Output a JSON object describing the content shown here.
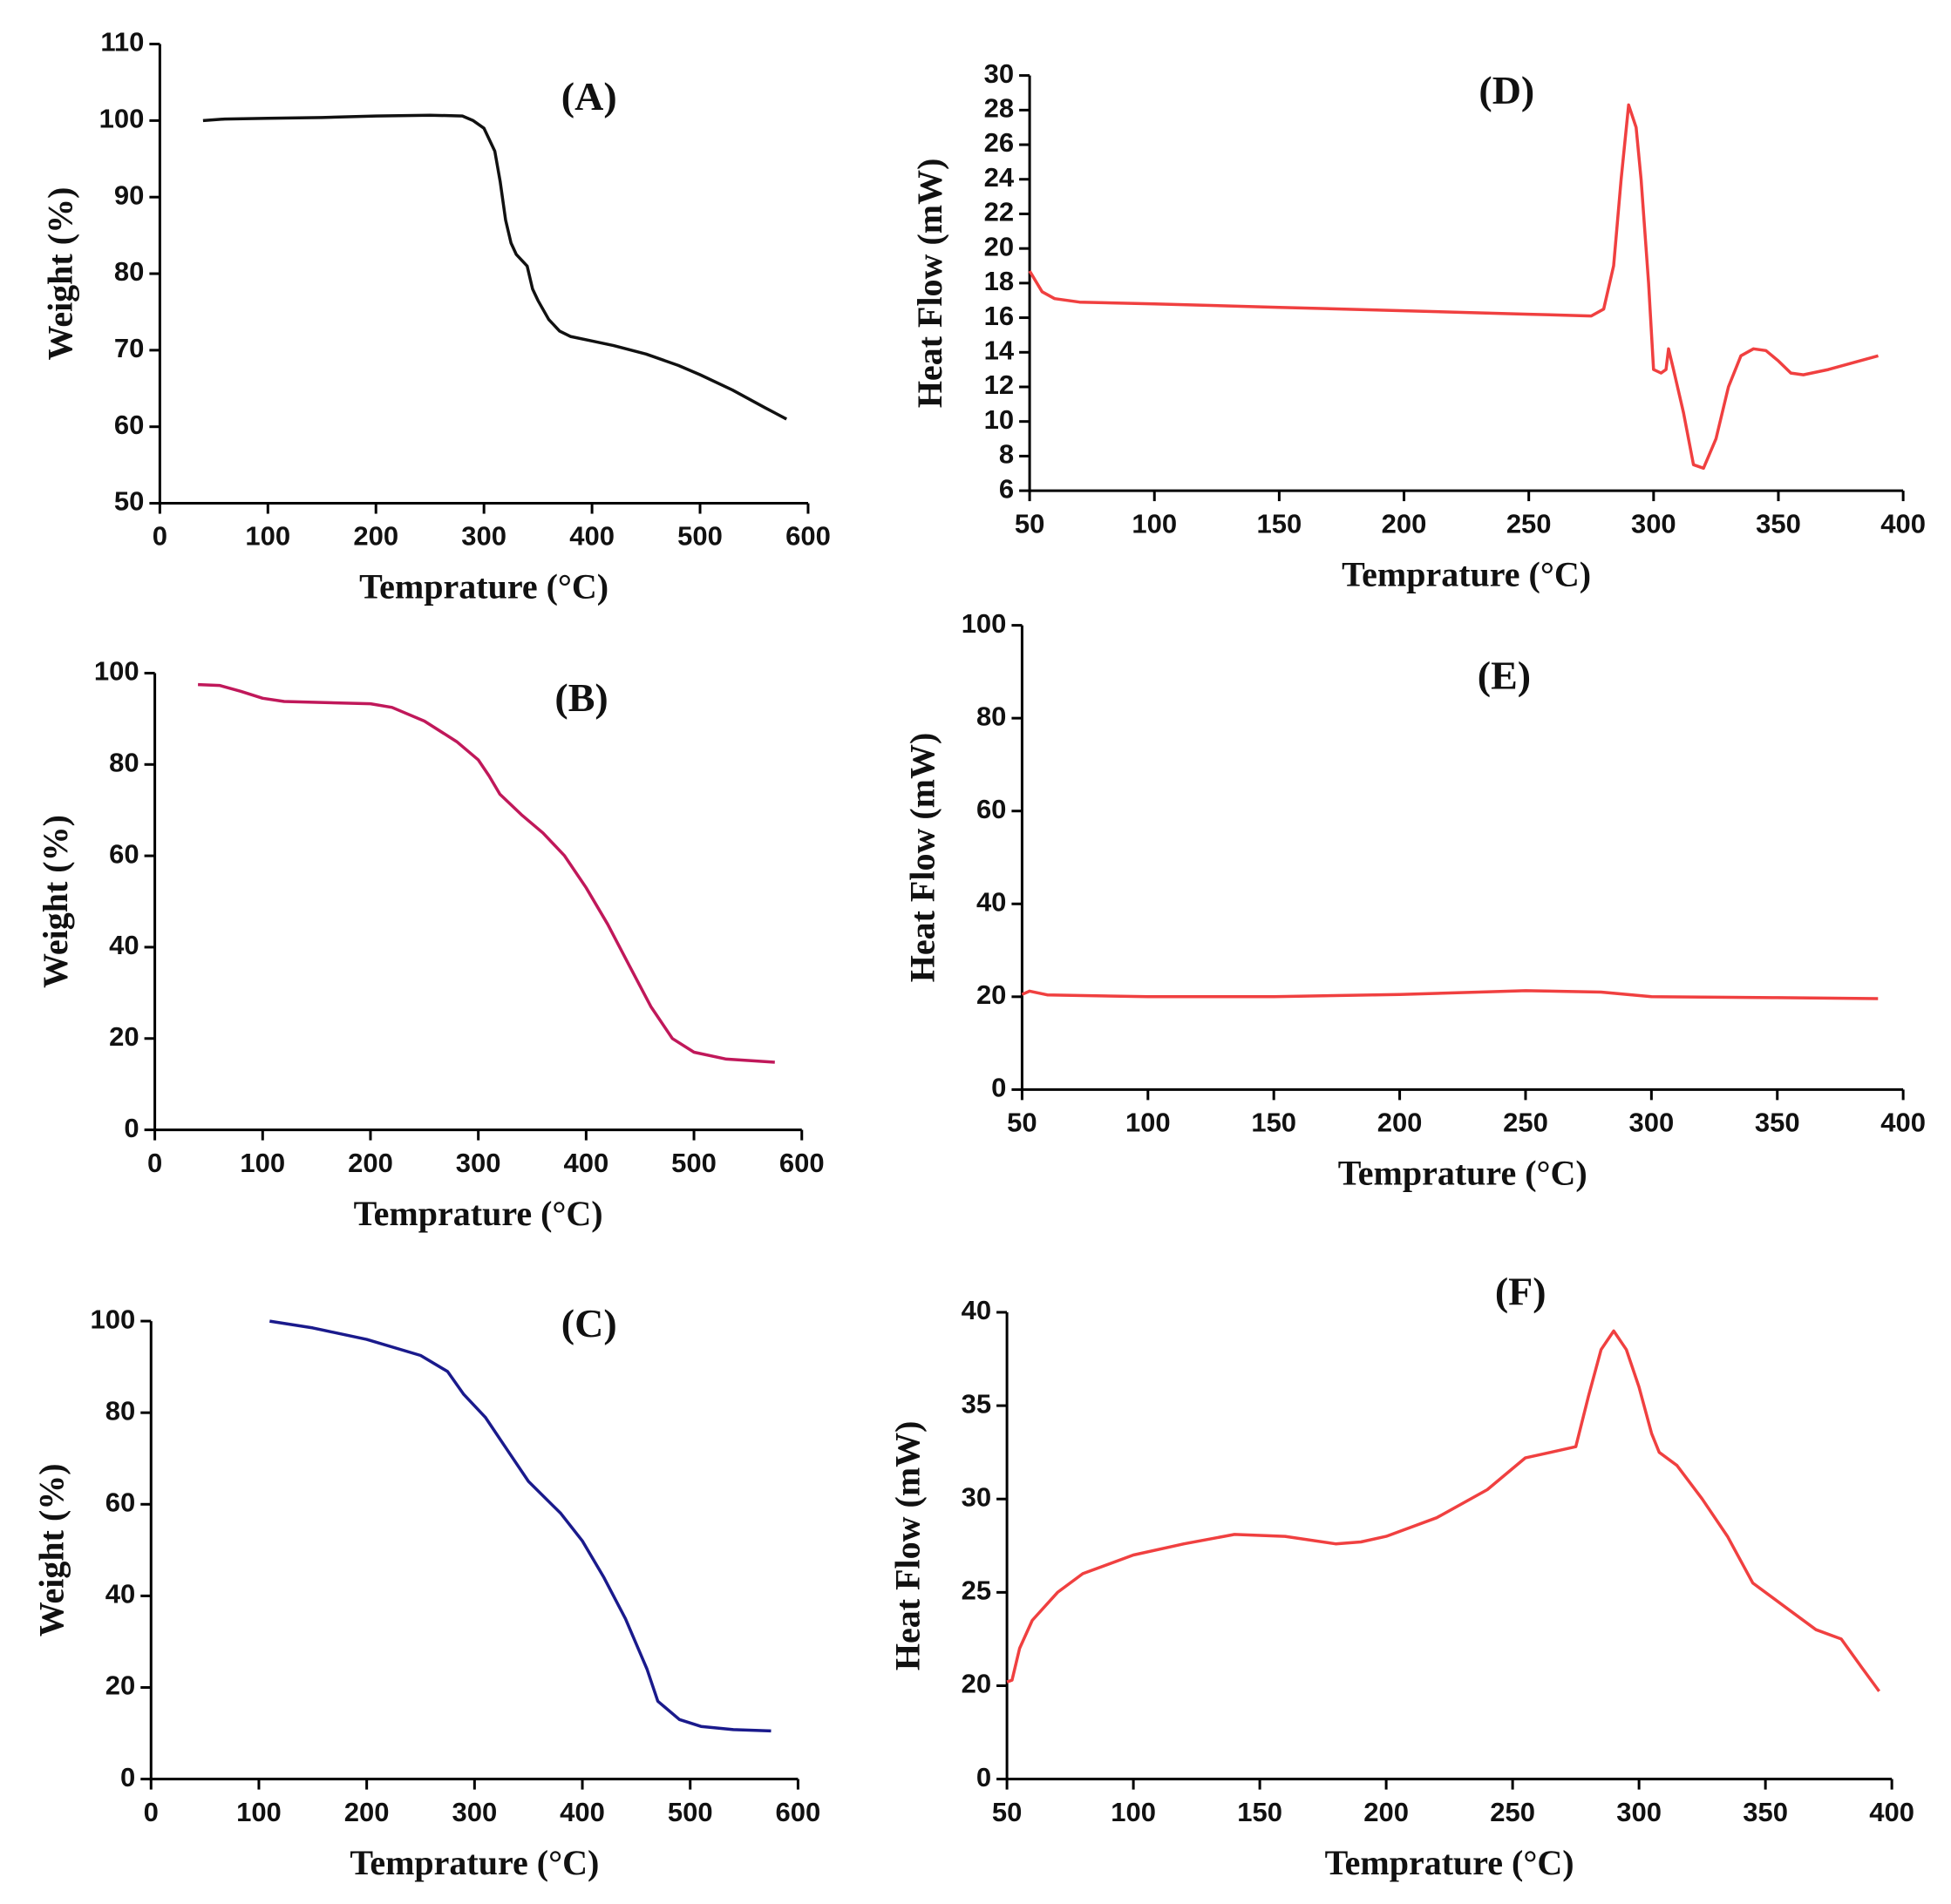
{
  "chart_data": [
    {
      "type": "line",
      "title": "(A)",
      "xlabel": "Temprature (°C)",
      "ylabel": "Weight (%)",
      "color": "#111111",
      "xlim": [
        0,
        600
      ],
      "xticks": [
        0,
        100,
        200,
        300,
        400,
        500,
        600
      ],
      "ylim": [
        50,
        110
      ],
      "yticks": [
        50,
        60,
        70,
        80,
        90,
        100,
        110
      ],
      "x": [
        40,
        60,
        100,
        150,
        200,
        250,
        280,
        290,
        300,
        310,
        315,
        320,
        325,
        330,
        340,
        345,
        350,
        360,
        370,
        380,
        400,
        420,
        450,
        480,
        500,
        530,
        560,
        580
      ],
      "values": [
        100,
        100.2,
        100.3,
        100.4,
        100.6,
        100.7,
        100.6,
        100,
        99,
        96,
        92,
        87,
        84,
        82.5,
        81,
        78,
        76.5,
        74,
        72.5,
        71.8,
        71.2,
        70.6,
        69.5,
        68,
        66.8,
        64.8,
        62.5,
        61
      ]
    },
    {
      "type": "line",
      "title": "(B)",
      "xlabel": "Temprature (°C)",
      "ylabel": "Weight (%)",
      "color": "#c0185a",
      "xlim": [
        0,
        600
      ],
      "xticks": [
        0,
        100,
        200,
        300,
        400,
        500,
        600
      ],
      "ylim": [
        0,
        100
      ],
      "yticks": [
        0,
        20,
        40,
        60,
        80,
        100
      ],
      "x": [
        40,
        60,
        80,
        100,
        120,
        150,
        200,
        220,
        250,
        280,
        300,
        310,
        320,
        340,
        360,
        380,
        400,
        420,
        440,
        460,
        480,
        500,
        530,
        575
      ],
      "values": [
        97.5,
        97.3,
        96,
        94.5,
        93.8,
        93.6,
        93.3,
        92.5,
        89.5,
        85,
        81,
        77.5,
        73.5,
        69,
        65,
        60,
        53,
        45,
        36,
        27,
        20,
        17,
        15.5,
        14.8
      ]
    },
    {
      "type": "line",
      "title": "(C)",
      "xlabel": "Temprature (°C)",
      "ylabel": "Weight (%)",
      "color": "#1a1a8c",
      "xlim": [
        0,
        600
      ],
      "xticks": [
        0,
        100,
        200,
        300,
        400,
        500,
        600
      ],
      "ylim": [
        0,
        100
      ],
      "yticks": [
        0,
        20,
        40,
        60,
        80,
        100
      ],
      "x": [
        110,
        150,
        200,
        250,
        275,
        290,
        310,
        330,
        350,
        380,
        400,
        420,
        440,
        460,
        470,
        490,
        510,
        540,
        575
      ],
      "values": [
        100,
        98.5,
        96,
        92.5,
        89,
        84,
        79,
        72,
        65,
        58,
        52,
        44,
        35,
        24,
        17,
        13,
        11.5,
        10.8,
        10.5
      ]
    },
    {
      "type": "line",
      "title": "(D)",
      "xlabel": "Temprature (°C)",
      "ylabel": "Heat Flow (mW)",
      "color": "#f04040",
      "xlim": [
        50,
        400
      ],
      "xticks": [
        50,
        100,
        150,
        200,
        250,
        300,
        350,
        400
      ],
      "ylim": [
        6,
        30
      ],
      "yticks": [
        6,
        8,
        10,
        12,
        14,
        16,
        18,
        20,
        22,
        24,
        26,
        28,
        30
      ],
      "x": [
        50,
        55,
        60,
        70,
        100,
        150,
        200,
        250,
        275,
        280,
        284,
        287,
        290,
        293,
        295,
        298,
        300,
        303,
        305,
        306,
        308,
        312,
        316,
        320,
        325,
        330,
        335,
        340,
        345,
        350,
        355,
        360,
        370,
        390
      ],
      "values": [
        18.7,
        17.5,
        17.1,
        16.9,
        16.8,
        16.6,
        16.4,
        16.2,
        16.1,
        16.5,
        19,
        24,
        28.3,
        27,
        24,
        18,
        13,
        12.8,
        13,
        14.2,
        13,
        10.5,
        7.5,
        7.3,
        9,
        12,
        13.8,
        14.2,
        14.1,
        13.5,
        12.8,
        12.7,
        13,
        13.8
      ]
    },
    {
      "type": "line",
      "title": "(E)",
      "xlabel": "Temprature (°C)",
      "ylabel": "Heat Flow (mW)",
      "color": "#f04040",
      "xlim": [
        50,
        400
      ],
      "xticks": [
        50,
        100,
        150,
        200,
        250,
        300,
        350,
        400
      ],
      "ylim": [
        0,
        100
      ],
      "yticks": [
        0,
        20,
        40,
        60,
        80,
        100
      ],
      "x": [
        50,
        53,
        60,
        100,
        150,
        200,
        250,
        280,
        300,
        350,
        390
      ],
      "values": [
        20.5,
        21.2,
        20.4,
        20,
        20,
        20.5,
        21.3,
        21,
        20,
        19.8,
        19.6
      ]
    },
    {
      "type": "line",
      "title": "(F)",
      "xlabel": "Temprature (°C)",
      "ylabel": "Heat Flow (mW)",
      "color": "#f04040",
      "xlim": [
        50,
        400
      ],
      "xticks": [
        50,
        100,
        150,
        200,
        250,
        300,
        350,
        400
      ],
      "ylim": [
        0,
        40
      ],
      "yticks": [
        0,
        20,
        25,
        30,
        35,
        40
      ],
      "ybreak": [
        0,
        15
      ],
      "x": [
        50,
        52,
        55,
        60,
        70,
        80,
        100,
        120,
        140,
        160,
        180,
        190,
        200,
        220,
        240,
        255,
        265,
        275,
        280,
        285,
        290,
        295,
        300,
        305,
        308,
        315,
        325,
        335,
        345,
        360,
        370,
        380,
        388,
        395
      ],
      "values": [
        20.2,
        20.3,
        22,
        23.5,
        25,
        26,
        27,
        27.6,
        28.1,
        28,
        27.6,
        27.7,
        28,
        29,
        30.5,
        32.2,
        32.5,
        32.8,
        35.5,
        38,
        39,
        38,
        36,
        33.5,
        32.5,
        31.8,
        30,
        28,
        25.5,
        24,
        23,
        22.5,
        21,
        19.7
      ]
    }
  ]
}
